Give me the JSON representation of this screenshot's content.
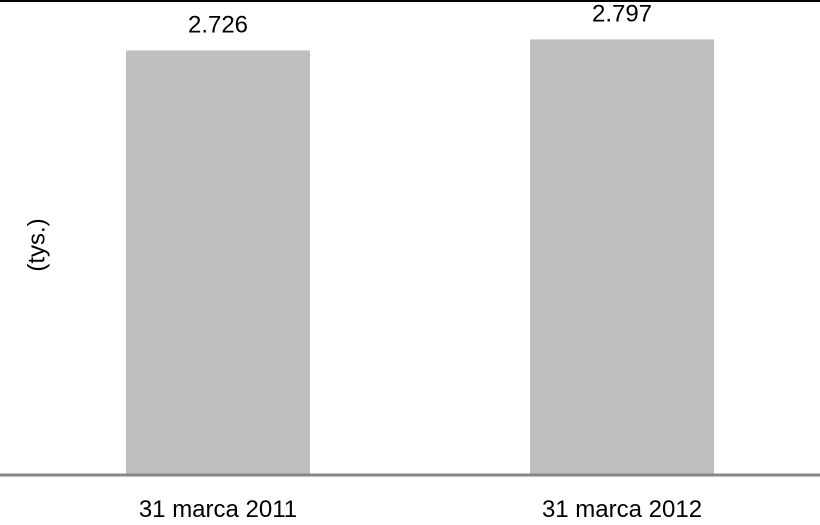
{
  "chart_data": {
    "type": "bar",
    "categories": [
      "31 marca 2011",
      "31 marca 2012"
    ],
    "values": [
      2.726,
      2.797
    ],
    "value_labels": [
      "2.726",
      "2.797"
    ],
    "ylabel": "(tys.)",
    "ylim": [
      0,
      3.05
    ],
    "grid": false,
    "legend": "none",
    "colors": {
      "bar": "#bfbfbf",
      "axis": "#868686",
      "top_rule": "#000000"
    }
  }
}
